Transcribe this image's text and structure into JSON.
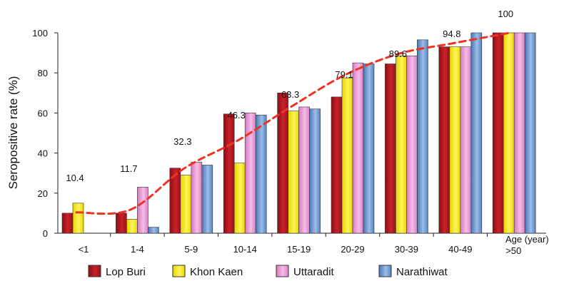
{
  "chart_data": {
    "type": "bar",
    "ylabel": "Seropositive rate (%)",
    "xlabel": "Age (year)",
    "ylim": [
      0,
      100
    ],
    "yticks": [
      0,
      20,
      40,
      60,
      80,
      100
    ],
    "categories": [
      "<1",
      "1-4",
      "5-9",
      "10-14",
      "15-19",
      "20-29",
      "30-39",
      "40-49",
      ">50"
    ],
    "series": [
      {
        "name": "Lop Buri",
        "color": "#b0141c",
        "values": [
          10,
          10,
          32.5,
          59.5,
          70,
          68,
          84.5,
          93,
          100
        ]
      },
      {
        "name": "Khon Kaen",
        "color": "#ffee00",
        "values": [
          15,
          7,
          29,
          35,
          61,
          77.5,
          88.5,
          93,
          100
        ]
      },
      {
        "name": "Uttaradit",
        "color": "#e88fd0",
        "values": [
          0,
          23,
          35.5,
          60,
          63,
          85,
          88.5,
          93,
          100
        ]
      },
      {
        "name": "Narathiwat",
        "color": "#5a8cc8",
        "values": [
          0,
          3,
          34,
          59,
          62,
          84.5,
          96.5,
          100,
          100
        ]
      }
    ],
    "trend": {
      "color": "#ee3322",
      "style": "dashed",
      "values": [
        10.4,
        11.7,
        32.3,
        46.3,
        63.3,
        79.1,
        89.6,
        94.8,
        100
      ]
    },
    "annotations": [
      "10.4",
      "11.7",
      "32.3",
      "46.3",
      "63.3",
      "79.1",
      "89.6",
      "94.8",
      "100"
    ],
    "grid": false,
    "legend_position": "bottom"
  }
}
